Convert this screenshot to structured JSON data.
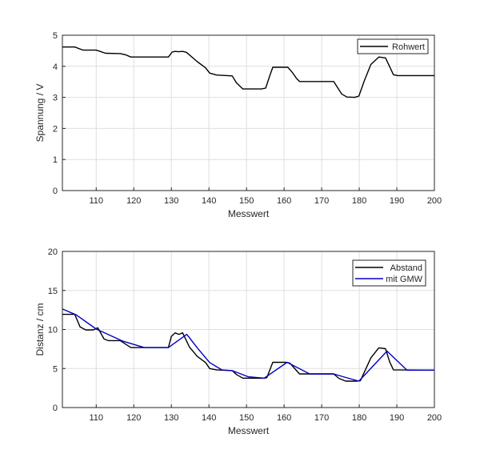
{
  "chart_data": [
    {
      "type": "line",
      "xlabel": "Messwert",
      "ylabel": "Spannung / V",
      "xlim": [
        101,
        200
      ],
      "ylim": [
        0,
        5
      ],
      "xticks": [
        110,
        120,
        130,
        140,
        150,
        160,
        170,
        180,
        190,
        200
      ],
      "yticks": [
        0,
        1,
        2,
        3,
        4,
        5
      ],
      "grid": true,
      "legend_position": "top-right",
      "series": [
        {
          "name": "Rohwert",
          "color": "#000000",
          "x": [
            101,
            104.3,
            106.5,
            110,
            112.5,
            116.4,
            117.8,
            119.2,
            129.2,
            130.2,
            131,
            132,
            133,
            134,
            136.9,
            139.1,
            140.2,
            142,
            146.2,
            147.3,
            149,
            154,
            155.1,
            156.2,
            157,
            159.7,
            161,
            162.2,
            163.3,
            164.1,
            173.2,
            175.3,
            176.7,
            178.8,
            179.9,
            181.3,
            183.1,
            185.2,
            187,
            189.1,
            190.2,
            200
          ],
          "y": [
            4.62,
            4.62,
            4.52,
            4.52,
            4.42,
            4.41,
            4.37,
            4.3,
            4.3,
            4.46,
            4.48,
            4.47,
            4.48,
            4.45,
            4.15,
            3.95,
            3.78,
            3.72,
            3.69,
            3.47,
            3.27,
            3.27,
            3.3,
            3.7,
            3.97,
            3.97,
            3.97,
            3.8,
            3.61,
            3.51,
            3.51,
            3.11,
            3.01,
            3.0,
            3.04,
            3.52,
            4.06,
            4.3,
            4.27,
            3.73,
            3.7,
            3.7
          ]
        }
      ]
    },
    {
      "type": "line",
      "xlabel": "Messwert",
      "ylabel": "Distanz / cm",
      "xlim": [
        101,
        200
      ],
      "ylim": [
        0,
        20
      ],
      "xticks": [
        110,
        120,
        130,
        140,
        150,
        160,
        170,
        180,
        190,
        200
      ],
      "yticks": [
        0,
        5,
        10,
        15,
        20
      ],
      "grid": true,
      "legend_position": "top-right",
      "series": [
        {
          "name": "Abstand",
          "color": "#000000",
          "x": [
            101,
            104.3,
            105.7,
            107.2,
            109.3,
            110.4,
            112.1,
            113.2,
            116.4,
            119.2,
            129.2,
            130,
            131,
            132,
            133,
            134.8,
            136.9,
            139.1,
            140.2,
            142,
            146.2,
            147.3,
            149,
            154.7,
            155.4,
            157,
            160.4,
            161.5,
            164.1,
            173.2,
            174.6,
            176.4,
            179.2,
            180.3,
            183.1,
            185.2,
            187,
            188.1,
            189.1,
            200
          ],
          "y": [
            11.94,
            11.94,
            10.33,
            9.95,
            9.95,
            10.22,
            8.78,
            8.57,
            8.57,
            7.68,
            7.68,
            9.12,
            9.57,
            9.37,
            9.57,
            7.75,
            6.55,
            5.76,
            5.0,
            4.83,
            4.73,
            4.24,
            3.76,
            3.76,
            3.83,
            5.79,
            5.79,
            5.7,
            4.31,
            4.31,
            3.73,
            3.38,
            3.38,
            3.45,
            6.37,
            7.65,
            7.54,
            5.86,
            4.83,
            4.79
          ]
        },
        {
          "name": "mit GMW",
          "color": "#0000c0",
          "x": [
            101,
            104.7,
            110,
            117.1,
            122.8,
            129.2,
            134.1,
            137,
            140.2,
            143.4,
            146.2,
            150.5,
            154.7,
            160.8,
            166.8,
            173.2,
            176.1,
            179.9,
            187.4,
            192.7,
            200
          ],
          "y": [
            12.63,
            11.87,
            10.05,
            8.5,
            7.68,
            7.68,
            9.37,
            7.58,
            5.76,
            4.83,
            4.73,
            3.94,
            3.76,
            5.79,
            4.31,
            4.31,
            3.9,
            3.38,
            7.23,
            4.79,
            4.79
          ]
        }
      ]
    }
  ]
}
